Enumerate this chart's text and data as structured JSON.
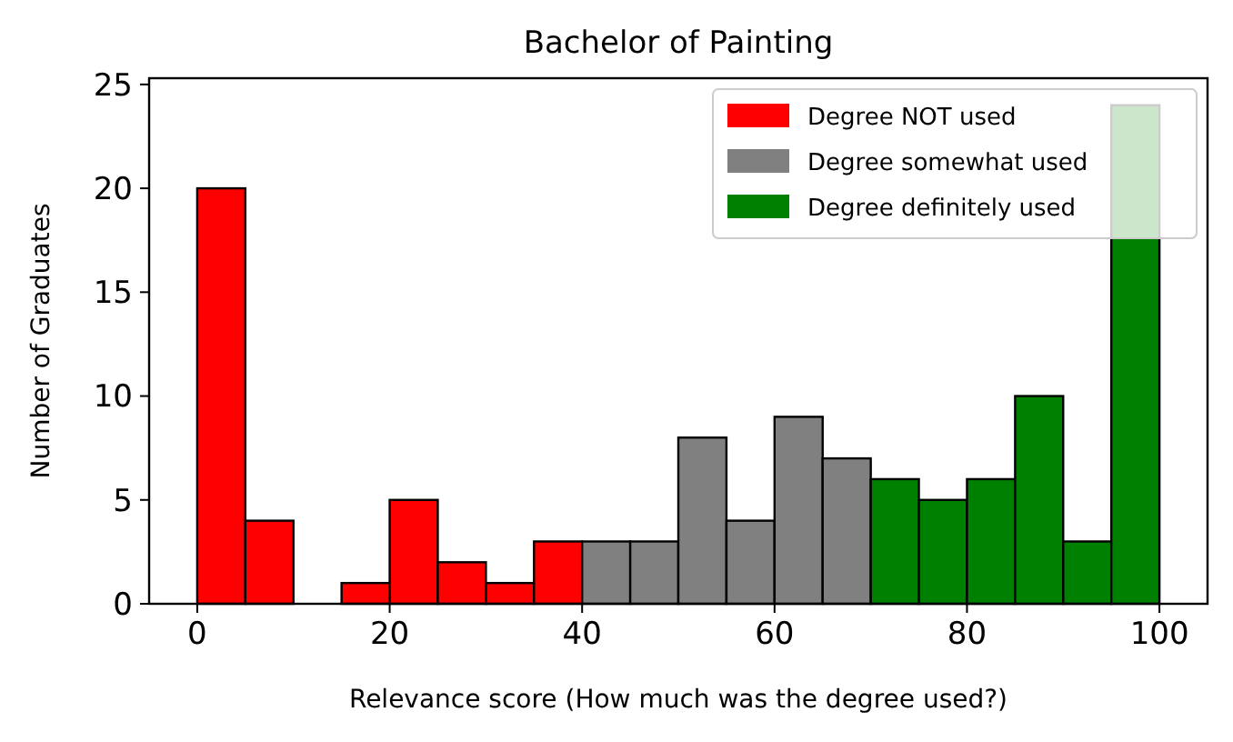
{
  "chart_data": {
    "type": "histogram",
    "title": "Bachelor of Painting",
    "xlabel": "Relevance score (How much was the degree used?)",
    "ylabel": "Number of Graduates",
    "xlim": [
      -5,
      105
    ],
    "xticks": [
      0,
      20,
      40,
      60,
      80,
      100
    ],
    "ylim": [
      0,
      25.3
    ],
    "yticks": [
      0,
      5,
      10,
      15,
      20,
      25
    ],
    "legend": "top right",
    "bins": [
      0,
      5,
      10,
      15,
      20,
      25,
      30,
      35,
      40,
      45,
      50,
      55,
      60,
      65,
      70,
      75,
      80,
      85,
      90,
      95,
      100
    ],
    "series": [
      {
        "name": "Degree NOT used",
        "color": "#ff0000",
        "values": [
          20,
          4,
          0,
          1,
          5,
          2,
          1,
          3,
          null,
          null,
          null,
          null,
          null,
          null,
          null,
          null,
          null,
          null,
          null,
          null
        ]
      },
      {
        "name": "Degree somewhat used",
        "color": "#808080",
        "values": [
          null,
          null,
          null,
          null,
          null,
          null,
          null,
          null,
          3,
          3,
          8,
          4,
          9,
          7,
          null,
          null,
          null,
          null,
          null,
          null
        ]
      },
      {
        "name": "Degree definitely used",
        "color": "#008000",
        "values": [
          null,
          null,
          null,
          null,
          null,
          null,
          null,
          null,
          null,
          null,
          null,
          null,
          null,
          null,
          6,
          5,
          6,
          10,
          3,
          24
        ]
      }
    ]
  }
}
